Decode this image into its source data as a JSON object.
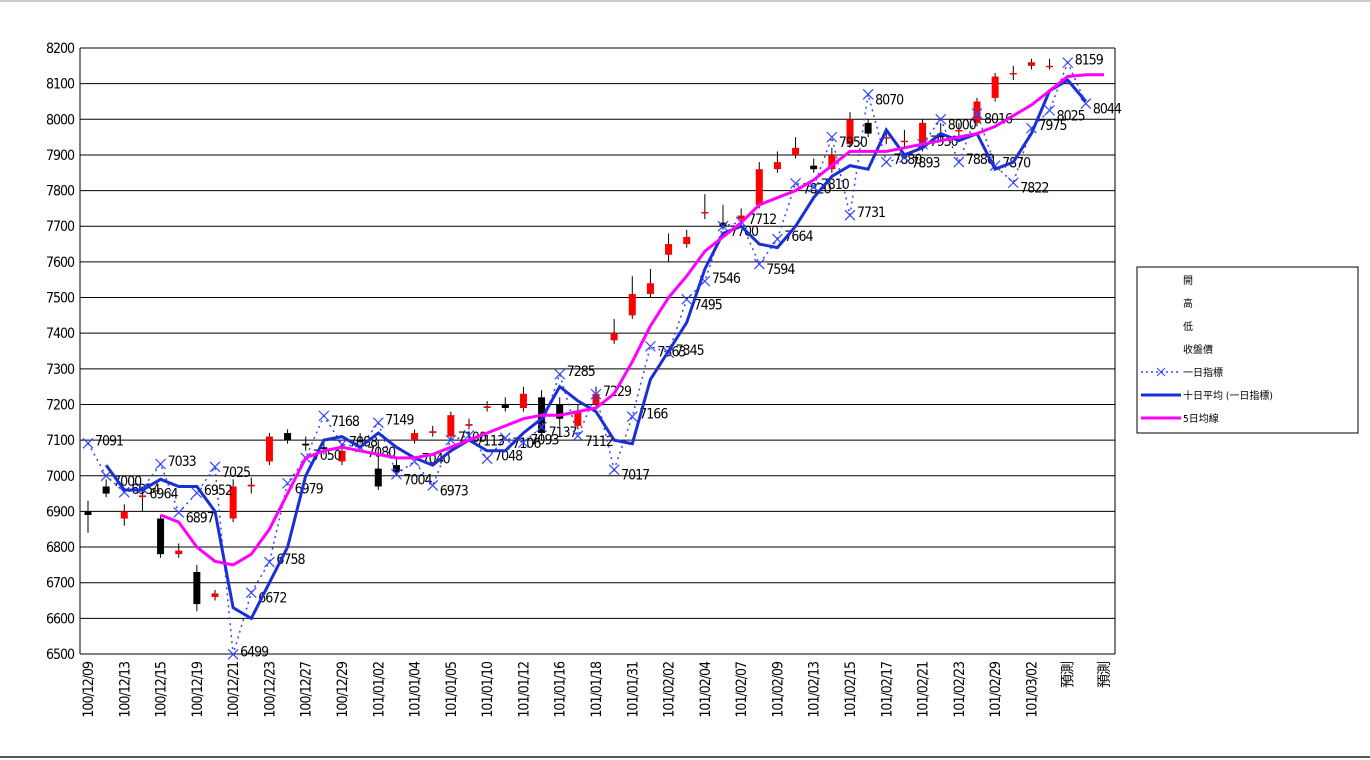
{
  "chart_data": {
    "type": "candlestick",
    "categories": [
      "100/12/09",
      null,
      "100/12/13",
      null,
      "100/12/15",
      null,
      "100/12/19",
      null,
      "100/12/21",
      null,
      "100/12/23",
      null,
      "100/12/27",
      null,
      "100/12/29",
      null,
      "101/01/02",
      null,
      "101/01/04",
      null,
      "101/01/05",
      null,
      "101/01/10",
      null,
      "101/01/12",
      null,
      "101/01/16",
      null,
      "101/01/18",
      null,
      "101/01/31",
      null,
      "101/02/02",
      null,
      "101/02/04",
      null,
      "101/02/07",
      null,
      "101/02/09",
      null,
      "101/02/13",
      null,
      "101/02/15",
      null,
      "101/02/17",
      null,
      "101/02/21",
      null,
      "101/02/23",
      null,
      "101/02/29",
      null,
      "101/03/02",
      null,
      "預測",
      null,
      "預測"
    ],
    "open": [
      6900,
      6970,
      6880,
      6940,
      6880,
      6780,
      6730,
      6660,
      6880,
      6970,
      7040,
      7120,
      7090,
      7080,
      7040,
      7100,
      7020,
      7030,
      7100,
      7120,
      7110,
      7140,
      7190,
      7200,
      7190,
      7220,
      7200,
      7140,
      7200,
      7380,
      7450,
      7510,
      7620,
      7650,
      7740,
      7710,
      7720,
      7760,
      7860,
      7900,
      7870,
      7860,
      7930,
      7990,
      7950,
      7940,
      7920,
      7960,
      7970,
      7990,
      8060,
      8130,
      8150,
      8150,
      null,
      null,
      null
    ],
    "high": [
      6930,
      6990,
      6920,
      6970,
      6890,
      6810,
      6750,
      6680,
      6990,
      6995,
      7120,
      7130,
      7110,
      7100,
      7090,
      7120,
      7100,
      7050,
      7130,
      7140,
      7180,
      7160,
      7210,
      7220,
      7250,
      7240,
      7220,
      7200,
      7250,
      7440,
      7560,
      7580,
      7680,
      7690,
      7790,
      7760,
      7750,
      7880,
      7910,
      7950,
      7890,
      7920,
      8020,
      8000,
      7970,
      7970,
      8000,
      7990,
      7990,
      8060,
      8130,
      8150,
      8170,
      8170,
      null,
      null,
      null
    ],
    "low": [
      6840,
      6940,
      6860,
      6900,
      6770,
      6770,
      6620,
      6650,
      6870,
      6950,
      7030,
      7090,
      7070,
      7060,
      7030,
      7090,
      6960,
      7000,
      7090,
      7110,
      7100,
      7130,
      7180,
      7180,
      7180,
      7100,
      7140,
      7130,
      7190,
      7370,
      7440,
      7500,
      7600,
      7640,
      7720,
      7690,
      7700,
      7750,
      7850,
      7890,
      7850,
      7850,
      7920,
      7950,
      7930,
      7920,
      7910,
      7940,
      7950,
      7980,
      8050,
      8110,
      8140,
      8140,
      null,
      null,
      null
    ],
    "close": [
      6890,
      6950,
      6900,
      6945,
      6780,
      6790,
      6640,
      6670,
      6970,
      6975,
      7110,
      7100,
      7085,
      7075,
      7070,
      7095,
      6970,
      7010,
      7120,
      7125,
      7170,
      7145,
      7195,
      7190,
      7230,
      7120,
      7160,
      7180,
      7230,
      7400,
      7510,
      7540,
      7650,
      7670,
      7740,
      7700,
      7730,
      7860,
      7880,
      7920,
      7860,
      7900,
      8000,
      7960,
      7950,
      7940,
      7990,
      7950,
      7970,
      8050,
      8120,
      8130,
      8160,
      8150,
      null,
      null,
      null
    ],
    "ohlc_names": [
      "開",
      "高",
      "低",
      "收盤價"
    ],
    "up_color": "#ff0000",
    "down_color": "#000000",
    "series": [
      {
        "name": "一日指標",
        "color": "#3344ff",
        "style": "dotted",
        "values": [
          7091,
          7000,
          6954,
          6964,
          7033,
          6897,
          6952,
          7025,
          6499,
          6672,
          6758,
          6979,
          7050,
          7168,
          7088,
          7080,
          7149,
          7004,
          7040,
          6973,
          7100,
          7113,
          7048,
          7106,
          7093,
          7137,
          7285,
          7112,
          7229,
          7017,
          7166,
          7363,
          7345,
          7495,
          7546,
          7700,
          7712,
          7594,
          7664,
          7820,
          7810,
          7950,
          7731,
          8070,
          7880,
          7893,
          7930,
          8000,
          7880,
          8016,
          7870,
          7822,
          7975,
          8025,
          8159,
          8044,
          null
        ]
      },
      {
        "name": "十日平均 (一日指標)",
        "color": "#1a2fd6",
        "style": "solid",
        "values": [
          null,
          7030,
          6960,
          6960,
          6990,
          6970,
          6970,
          6900,
          6630,
          6600,
          6700,
          6800,
          7000,
          7100,
          7110,
          7080,
          7120,
          7080,
          7050,
          7030,
          7070,
          7100,
          7070,
          7070,
          7120,
          7160,
          7250,
          7210,
          7180,
          7100,
          7090,
          7270,
          7350,
          7430,
          7580,
          7680,
          7700,
          7650,
          7640,
          7700,
          7780,
          7840,
          7870,
          7860,
          7970,
          7900,
          7920,
          7960,
          7940,
          7960,
          7860,
          7880,
          7960,
          8080,
          8110,
          8050,
          null
        ]
      },
      {
        "name": "5日均線",
        "color": "#ff00ff",
        "style": "solid",
        "values": [
          null,
          null,
          null,
          null,
          6890,
          6870,
          6800,
          6760,
          6750,
          6780,
          6850,
          6950,
          7050,
          7070,
          7080,
          7070,
          7060,
          7050,
          7050,
          7060,
          7080,
          7100,
          7120,
          7140,
          7160,
          7170,
          7170,
          7180,
          7190,
          7230,
          7320,
          7420,
          7500,
          7560,
          7630,
          7670,
          7710,
          7760,
          7780,
          7800,
          7830,
          7870,
          7910,
          7910,
          7910,
          7920,
          7930,
          7940,
          7950,
          7960,
          7980,
          8010,
          8040,
          8080,
          8120,
          8125,
          8125
        ]
      }
    ],
    "ylim": [
      6500,
      8200
    ],
    "yticks": [
      6500,
      6600,
      6700,
      6800,
      6900,
      7000,
      7100,
      7200,
      7300,
      7400,
      7500,
      7600,
      7700,
      7800,
      7900,
      8000,
      8100,
      8200
    ],
    "grid": true,
    "legend": "right"
  }
}
